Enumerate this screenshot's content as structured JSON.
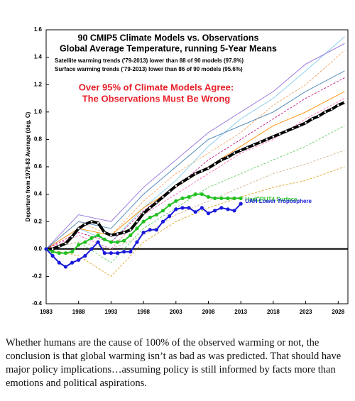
{
  "chart_data": {
    "type": "line",
    "title": "90 CMIP5 Climate Models vs. Observations",
    "subtitle": "Global Average Temperature, running 5-Year Means",
    "notes": [
      "Satellite warming trends ('79-2013) lower than 88 of 90 models (97.8%)",
      "Surface warming trends ('79-2013) lower than 86 of 90 models (95.6%)"
    ],
    "annotations": [
      "Over 95% of Climate Models Agree:",
      "The Observations Must Be Wrong"
    ],
    "y_label": "Departure from 1979-83 Average (deg. C)",
    "xlim": [
      1983,
      2029.5
    ],
    "xticks": [
      1983,
      1988,
      1993,
      1998,
      2003,
      2008,
      2013,
      2018,
      2023,
      2028
    ],
    "ylim": [
      -0.4,
      1.6
    ],
    "yticks": [
      -0.4,
      -0.2,
      {
        "value": 0,
        "label": "0.0"
      },
      0.2,
      0.4,
      0.6,
      0.8,
      {
        "value": 1,
        "label": "1.0"
      },
      1.2,
      1.4,
      1.6
    ],
    "grid": false,
    "series": [
      {
        "color": "#f4a460",
        "dash": true,
        "x": [
          1983,
          1988,
          1993,
          1998,
          2003,
          2008,
          2013,
          2018,
          2023,
          2029
        ],
        "values": [
          0,
          0.2,
          0.1,
          0.35,
          0.55,
          0.7,
          0.85,
          1.05,
          1.2,
          1.45
        ]
      },
      {
        "color": "#87ceeb",
        "dash": false,
        "x": [
          1983,
          1988,
          1993,
          1998,
          2003,
          2008,
          2013,
          2018,
          2023,
          2029
        ],
        "values": [
          0,
          0.15,
          0.05,
          0.3,
          0.5,
          0.75,
          0.95,
          1.1,
          1.3,
          1.55
        ]
      },
      {
        "color": "#ff69b4",
        "dash": true,
        "x": [
          1983,
          1988,
          1993,
          1998,
          2003,
          2008,
          2013,
          2018,
          2023,
          2029
        ],
        "values": [
          0,
          0.1,
          0,
          0.25,
          0.4,
          0.55,
          0.7,
          0.8,
          0.95,
          1.1
        ]
      },
      {
        "color": "#66cc66",
        "dash": true,
        "x": [
          1983,
          1988,
          1993,
          1998,
          2003,
          2008,
          2013,
          2018,
          2023,
          2029
        ],
        "values": [
          0,
          0.05,
          -0.1,
          0.15,
          0.3,
          0.45,
          0.55,
          0.65,
          0.75,
          0.9
        ]
      },
      {
        "color": "#9370db",
        "dash": false,
        "x": [
          1983,
          1988,
          1993,
          1998,
          2003,
          2008,
          2013,
          2018,
          2023,
          2029
        ],
        "values": [
          0,
          0.25,
          0.2,
          0.45,
          0.65,
          0.85,
          1,
          1.15,
          1.35,
          1.5
        ]
      },
      {
        "color": "#ff8c00",
        "dash": false,
        "x": [
          1983,
          1988,
          1993,
          1998,
          2003,
          2008,
          2013,
          2018,
          2023,
          2029
        ],
        "values": [
          0,
          0.15,
          0.1,
          0.3,
          0.45,
          0.6,
          0.75,
          0.9,
          1,
          1.15
        ]
      },
      {
        "color": "#d2b48c",
        "dash": true,
        "x": [
          1983,
          1988,
          1993,
          1998,
          2003,
          2008,
          2013,
          2018,
          2023,
          2029
        ],
        "values": [
          0,
          0.05,
          0,
          0.1,
          0.25,
          0.35,
          0.45,
          0.55,
          0.62,
          0.72
        ]
      },
      {
        "color": "#4682b4",
        "dash": false,
        "x": [
          1983,
          1988,
          1993,
          1998,
          2003,
          2008,
          2013,
          2018,
          2023,
          2029
        ],
        "values": [
          0,
          0.2,
          0.15,
          0.4,
          0.6,
          0.8,
          0.9,
          1,
          1.15,
          1.3
        ]
      },
      {
        "color": "#c71585",
        "dash": true,
        "x": [
          1983,
          1988,
          1993,
          1998,
          2003,
          2008,
          2013,
          2018,
          2023,
          2029
        ],
        "values": [
          0,
          0.12,
          0.05,
          0.28,
          0.45,
          0.65,
          0.8,
          0.95,
          1.1,
          1.25
        ]
      },
      {
        "color": "#daa520",
        "dash": true,
        "x": [
          1983,
          1988,
          1993,
          1998,
          2003,
          2008,
          2013,
          2018,
          2023,
          2029
        ],
        "values": [
          0,
          -0.05,
          -0.2,
          0.05,
          0.2,
          0.3,
          0.38,
          0.45,
          0.5,
          0.6
        ]
      },
      {
        "color": "#000000",
        "width": 4,
        "marker": "#ffffff",
        "x": [
          1983,
          1984,
          1985,
          1986,
          1987,
          1988,
          1989,
          1990,
          1991,
          1992,
          1993,
          1994,
          1995,
          1996,
          1997,
          1998,
          1999,
          2000,
          2001,
          2002,
          2003,
          2004,
          2005,
          2006,
          2007,
          2008,
          2009,
          2010,
          2011,
          2012,
          2013,
          2014,
          2015,
          2016,
          2017,
          2018,
          2019,
          2020,
          2021,
          2022,
          2023,
          2024,
          2025,
          2026,
          2027,
          2028,
          2029
        ],
        "values": [
          0,
          0,
          0.02,
          0.04,
          0.09,
          0.15,
          0.18,
          0.2,
          0.19,
          0.12,
          0.1,
          0.11,
          0.12,
          0.14,
          0.2,
          0.26,
          0.3,
          0.34,
          0.38,
          0.42,
          0.46,
          0.49,
          0.52,
          0.55,
          0.57,
          0.59,
          0.62,
          0.65,
          0.67,
          0.7,
          0.72,
          0.74,
          0.76,
          0.78,
          0.8,
          0.82,
          0.84,
          0.86,
          0.88,
          0.9,
          0.92,
          0.95,
          0.97,
          1,
          1.02,
          1.05,
          1.07
        ]
      },
      {
        "name": "HadCRUT4 Surface",
        "color": "#22c022",
        "width": 2,
        "marker": "#22c022",
        "x": [
          1983,
          1984,
          1985,
          1986,
          1987,
          1988,
          1989,
          1990,
          1991,
          1992,
          1993,
          1994,
          1995,
          1996,
          1997,
          1998,
          1999,
          2000,
          2001,
          2002,
          2003,
          2004,
          2005,
          2006,
          2007,
          2008,
          2009,
          2010,
          2011,
          2012,
          2013
        ],
        "values": [
          0,
          -0.02,
          -0.03,
          -0.03,
          -0.02,
          0.03,
          0.05,
          0.08,
          0.1,
          0.07,
          0.05,
          0.05,
          0.06,
          0.1,
          0.15,
          0.2,
          0.23,
          0.25,
          0.28,
          0.32,
          0.35,
          0.37,
          0.38,
          0.4,
          0.4,
          0.38,
          0.37,
          0.37,
          0.37,
          0.37,
          0.37
        ]
      },
      {
        "name": "UAH Lower Troposphere",
        "color": "#1a1adc",
        "width": 2,
        "marker": "#1a1adc",
        "x": [
          1983,
          1984,
          1985,
          1986,
          1987,
          1988,
          1989,
          1990,
          1991,
          1992,
          1993,
          1994,
          1995,
          1996,
          1997,
          1998,
          1999,
          2000,
          2001,
          2002,
          2003,
          2004,
          2005,
          2006,
          2007,
          2008,
          2009,
          2010,
          2011,
          2012,
          2013
        ],
        "values": [
          0,
          -0.05,
          -0.1,
          -0.13,
          -0.1,
          -0.08,
          -0.05,
          0,
          0.05,
          -0.03,
          -0.03,
          -0.03,
          -0.02,
          -0.02,
          0.05,
          0.12,
          0.14,
          0.14,
          0.2,
          0.24,
          0.29,
          0.3,
          0.3,
          0.27,
          0.3,
          0.26,
          0.28,
          0.3,
          0.29,
          0.28,
          0.33
        ]
      }
    ]
  },
  "paragraph": "Whether humans are the cause of 100% of the observed warming or not, the conclusion is that global warming isn’t as bad as was predicted. That should have major policy implications…assuming policy is still informed by facts more than emotions and political aspirations."
}
